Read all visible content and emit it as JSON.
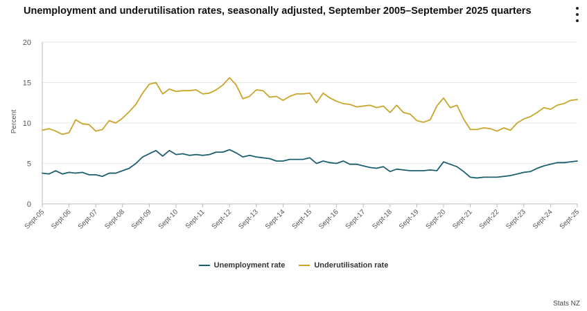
{
  "title": "Unemployment and underutilisation rates, seasonally adjusted, September 2005–September 2025 quarters",
  "menu_icon": "kebab-menu-icon",
  "credit": "Stats NZ",
  "colors": {
    "unemployment": "#1b5e70",
    "underutilisation": "#c9a52b",
    "grid": "#e6e6e6",
    "axis": "#bbbbbb"
  },
  "chart_data": {
    "type": "line",
    "title": "Unemployment and underutilisation rates, seasonally adjusted, September 2005–September 2025 quarters",
    "xlabel": "",
    "ylabel": "Percent",
    "ylim": [
      0,
      20
    ],
    "yticks": [
      0,
      5,
      10,
      15,
      20
    ],
    "grid": true,
    "legend_position": "bottom",
    "x_tick_labels": [
      "Sept-05",
      "Sept-06",
      "Sept-07",
      "Sept-08",
      "Sept-09",
      "Sept-10",
      "Sept-11",
      "Sept-12",
      "Sept-13",
      "Sept-14",
      "Sept-15",
      "Sept-16",
      "Sept-17",
      "Sept-18",
      "Sept-19",
      "Sept-20",
      "Sept-21",
      "Sept-22",
      "Sept-23",
      "Sept-24",
      "Sept-25"
    ],
    "quarters_per_tick": 4,
    "series": [
      {
        "name": "Unemployment rate",
        "color": "#1b5e70",
        "values": [
          3.8,
          3.7,
          4.1,
          3.7,
          3.9,
          3.8,
          3.9,
          3.6,
          3.6,
          3.4,
          3.8,
          3.8,
          4.1,
          4.4,
          5.0,
          5.8,
          6.2,
          6.6,
          5.9,
          6.6,
          6.1,
          6.2,
          6.0,
          6.1,
          6.0,
          6.1,
          6.4,
          6.4,
          6.7,
          6.3,
          5.8,
          6.0,
          5.8,
          5.7,
          5.6,
          5.3,
          5.3,
          5.5,
          5.5,
          5.5,
          5.7,
          5.0,
          5.3,
          5.1,
          5.0,
          5.3,
          4.9,
          4.9,
          4.7,
          4.5,
          4.4,
          4.6,
          4.0,
          4.3,
          4.2,
          4.1,
          4.1,
          4.1,
          4.2,
          4.1,
          5.2,
          4.9,
          4.6,
          4.0,
          3.3,
          3.2,
          3.3,
          3.3,
          3.3,
          3.4,
          3.5,
          3.7,
          3.9,
          4.0,
          4.4,
          4.7,
          4.9,
          5.1,
          5.1,
          5.2,
          5.3
        ]
      },
      {
        "name": "Underutilisation rate",
        "color": "#c9a52b",
        "values": [
          9.1,
          9.3,
          9.0,
          8.6,
          8.8,
          10.4,
          9.9,
          9.8,
          9.0,
          9.2,
          10.3,
          10.0,
          10.6,
          11.4,
          12.3,
          13.7,
          14.8,
          15.0,
          13.6,
          14.2,
          13.9,
          14.0,
          14.0,
          14.1,
          13.6,
          13.7,
          14.1,
          14.7,
          15.6,
          14.7,
          13.0,
          13.3,
          14.1,
          14.0,
          13.2,
          13.3,
          12.8,
          13.3,
          13.6,
          13.6,
          13.7,
          12.5,
          13.7,
          13.1,
          12.7,
          12.4,
          12.3,
          12.0,
          12.1,
          12.2,
          11.9,
          12.1,
          11.3,
          12.2,
          11.3,
          11.1,
          10.3,
          10.1,
          10.4,
          12.1,
          13.1,
          11.9,
          12.2,
          10.5,
          9.2,
          9.2,
          9.4,
          9.3,
          9.0,
          9.4,
          9.1,
          10.0,
          10.5,
          10.8,
          11.3,
          11.9,
          11.7,
          12.2,
          12.4,
          12.8,
          12.9
        ]
      }
    ]
  }
}
